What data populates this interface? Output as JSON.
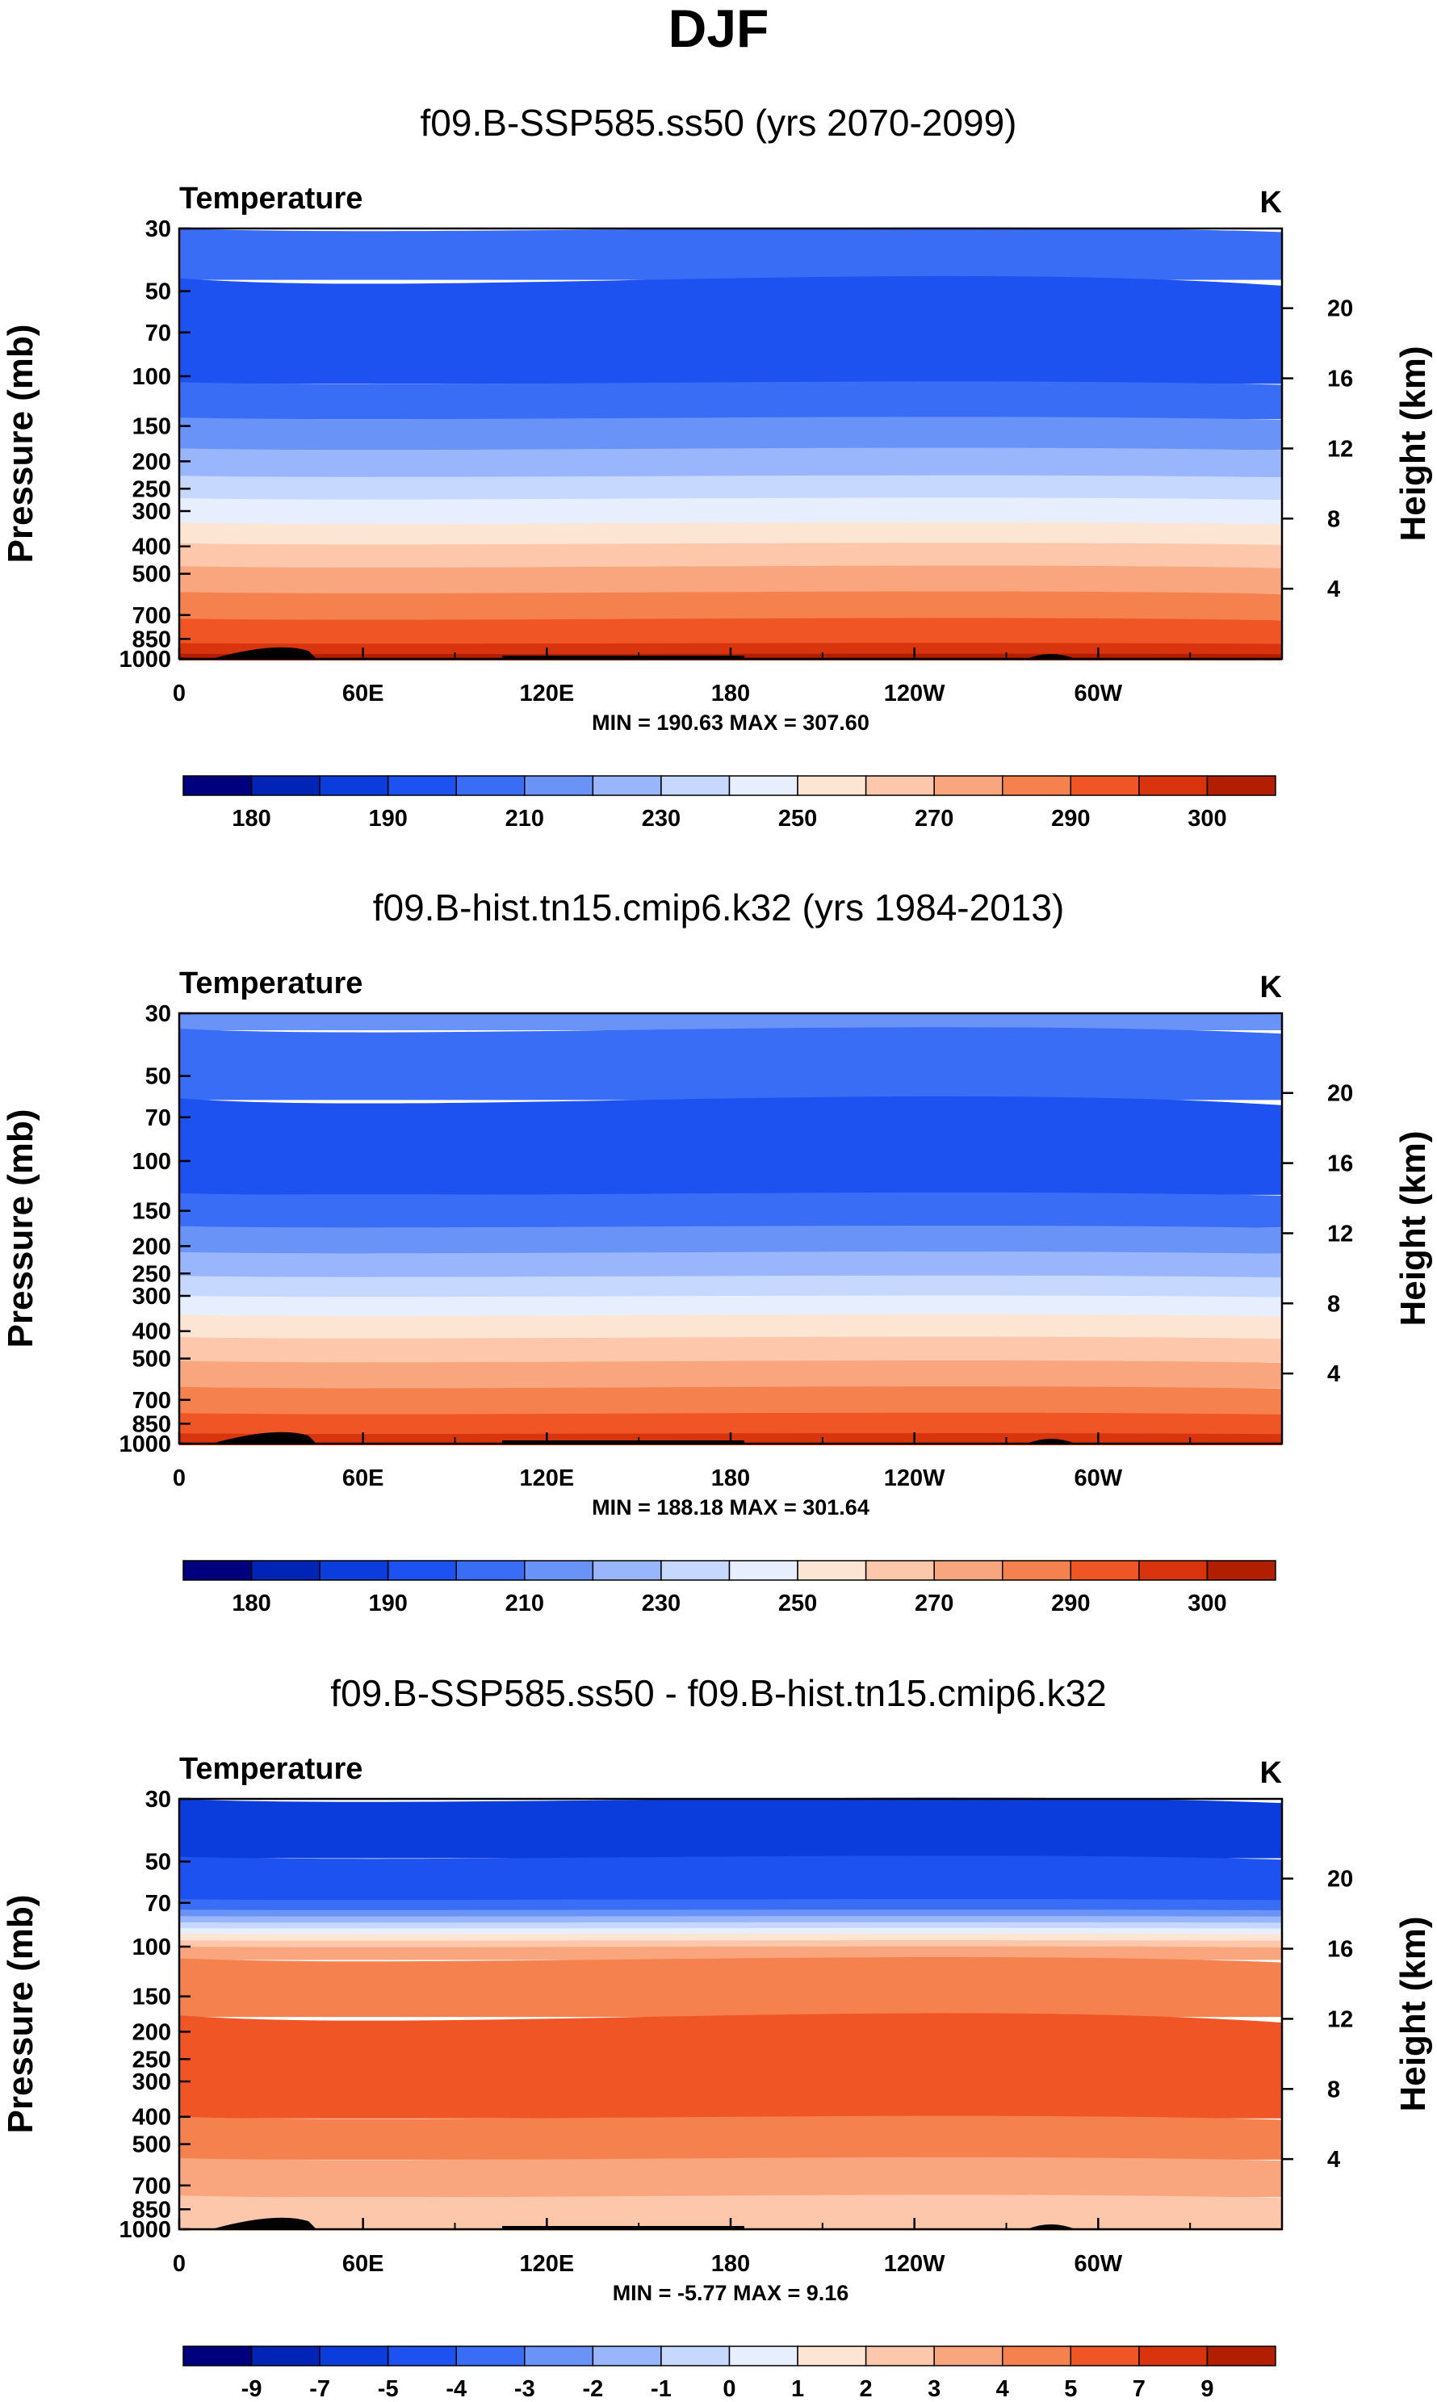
{
  "title": "DJF",
  "chart_data": [
    {
      "type": "heatmap",
      "title": "f09.B-SSP585.ss50 (yrs 2070-2099)",
      "variable": "Temperature",
      "units": "K",
      "ylabel": "Pressure (mb)",
      "ylabel_right": "Height (km)",
      "x_ticks": [
        "0",
        "60E",
        "120E",
        "180",
        "120W",
        "60W"
      ],
      "y_ticks": [
        "30",
        "50",
        "70",
        "100",
        "150",
        "200",
        "250",
        "300",
        "400",
        "500",
        "700",
        "850",
        "1000"
      ],
      "height_ticks": [
        "20",
        "16",
        "12",
        "8",
        "4"
      ],
      "min_max": "MIN = 190.63  MAX = 307.60",
      "min": 190.63,
      "max": 307.6,
      "colorbar_labels": [
        "180",
        "190",
        "210",
        "230",
        "250",
        "270",
        "290",
        "300"
      ],
      "bands": [
        {
          "p": 30,
          "level": 4
        },
        {
          "p": 45,
          "level": 3
        },
        {
          "p": 105,
          "level": 4
        },
        {
          "p": 140,
          "level": 5
        },
        {
          "p": 180,
          "level": 6
        },
        {
          "p": 225,
          "level": 7
        },
        {
          "p": 270,
          "level": 8
        },
        {
          "p": 330,
          "level": 9
        },
        {
          "p": 390,
          "level": 10
        },
        {
          "p": 470,
          "level": 11
        },
        {
          "p": 580,
          "level": 12
        },
        {
          "p": 720,
          "level": 13
        },
        {
          "p": 880,
          "level": 14
        },
        {
          "p": 960,
          "level": 15
        }
      ]
    },
    {
      "type": "heatmap",
      "title": "f09.B-hist.tn15.cmip6.k32 (yrs 1984-2013)",
      "variable": "Temperature",
      "units": "K",
      "ylabel": "Pressure (mb)",
      "ylabel_right": "Height (km)",
      "x_ticks": [
        "0",
        "60E",
        "120E",
        "180",
        "120W",
        "60W"
      ],
      "y_ticks": [
        "30",
        "50",
        "70",
        "100",
        "150",
        "200",
        "250",
        "300",
        "400",
        "500",
        "700",
        "850",
        "1000"
      ],
      "height_ticks": [
        "20",
        "16",
        "12",
        "8",
        "4"
      ],
      "min_max": "MIN = 188.18  MAX = 301.64",
      "min": 188.18,
      "max": 301.64,
      "colorbar_labels": [
        "180",
        "190",
        "210",
        "230",
        "250",
        "270",
        "290",
        "300"
      ],
      "bands": [
        {
          "p": 30,
          "level": 5
        },
        {
          "p": 34,
          "level": 4
        },
        {
          "p": 60,
          "level": 3
        },
        {
          "p": 130,
          "level": 4
        },
        {
          "p": 170,
          "level": 5
        },
        {
          "p": 210,
          "level": 6
        },
        {
          "p": 255,
          "level": 7
        },
        {
          "p": 300,
          "level": 8
        },
        {
          "p": 350,
          "level": 9
        },
        {
          "p": 420,
          "level": 10
        },
        {
          "p": 510,
          "level": 11
        },
        {
          "p": 630,
          "level": 12
        },
        {
          "p": 780,
          "level": 13
        },
        {
          "p": 920,
          "level": 14
        }
      ]
    },
    {
      "type": "heatmap",
      "title": "f09.B-SSP585.ss50 - f09.B-hist.tn15.cmip6.k32",
      "variable": "Temperature",
      "units": "K",
      "ylabel": "Pressure (mb)",
      "ylabel_right": "Height (km)",
      "x_ticks": [
        "0",
        "60E",
        "120E",
        "180",
        "120W",
        "60W"
      ],
      "y_ticks": [
        "30",
        "50",
        "70",
        "100",
        "150",
        "200",
        "250",
        "300",
        "400",
        "500",
        "700",
        "850",
        "1000"
      ],
      "height_ticks": [
        "20",
        "16",
        "12",
        "8",
        "4"
      ],
      "min_max": "MIN =  -5.77  MAX =   9.16",
      "min": -5.77,
      "max": 9.16,
      "colorbar_labels": [
        "-9",
        "-7",
        "-5",
        "-4",
        "-3",
        "-2",
        "-1",
        "0",
        "1",
        "2",
        "3",
        "4",
        "5",
        "7",
        "9"
      ],
      "bands": [
        {
          "p": 30,
          "level": 2
        },
        {
          "p": 48,
          "level": 3
        },
        {
          "p": 68,
          "level": 4
        },
        {
          "p": 74,
          "level": 5
        },
        {
          "p": 78,
          "level": 6
        },
        {
          "p": 82,
          "level": 7
        },
        {
          "p": 86,
          "level": 8
        },
        {
          "p": 90,
          "level": 9
        },
        {
          "p": 95,
          "level": 10
        },
        {
          "p": 100,
          "level": 11
        },
        {
          "p": 110,
          "level": 12
        },
        {
          "p": 175,
          "level": 13
        },
        {
          "p": 400,
          "level": 12
        },
        {
          "p": 560,
          "level": 11
        },
        {
          "p": 760,
          "level": 10
        }
      ]
    }
  ],
  "colors": {
    "palette": [
      "#00007f",
      "#0024b5",
      "#0a3ddc",
      "#1d52f0",
      "#3a6df5",
      "#6a93f8",
      "#99b5fb",
      "#c6d8fd",
      "#e7eefe",
      "#fde5d4",
      "#fcc7aa",
      "#f9a57e",
      "#f5814f",
      "#ef5525",
      "#d8350e",
      "#b21e00",
      "#7f0000"
    ],
    "palette_diff": [
      "#00007f",
      "#0024b5",
      "#0a3ddc",
      "#1d52f0",
      "#3a6df5",
      "#6a93f8",
      "#99b5fb",
      "#c6d8fd",
      "#e7eefe",
      "#fde5d4",
      "#fcc7aa",
      "#f9a57e",
      "#f5814f",
      "#ef5525",
      "#d8350e",
      "#b21e00",
      "#7f0000"
    ],
    "topography": "#000000"
  }
}
